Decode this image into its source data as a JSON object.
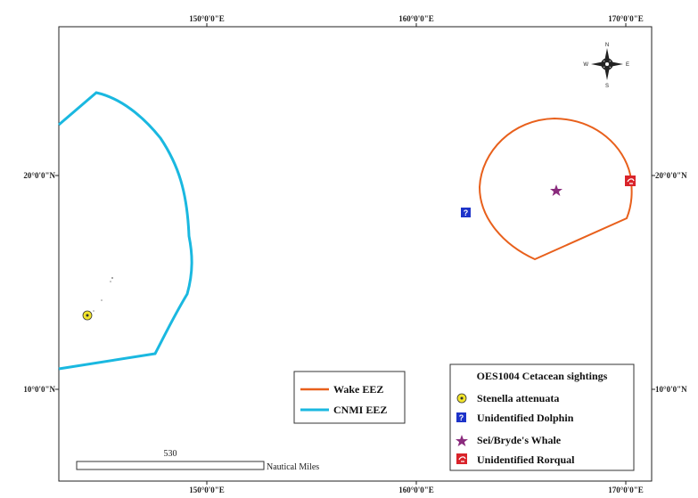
{
  "map": {
    "graticule": {
      "top_longitudes": [
        "150°0'0\"E",
        "160°0'0\"E",
        "170°0'0\"E"
      ],
      "bottom_longitudes": [
        "150°0'0\"E",
        "160°0'0\"E",
        "170°0'0\"E"
      ],
      "left_latitudes": [
        "20°0'0\"N",
        "10°0'0\"N"
      ],
      "right_latitudes": [
        "20°0'0\"N",
        "10°0'0\"N"
      ]
    },
    "compass": {
      "n": "N",
      "s": "S",
      "e": "E",
      "w": "W"
    },
    "colors": {
      "wake_eez": "#e8601c",
      "cnmi_eez": "#1ab8e0",
      "stenella": "#f2e52c",
      "dolphin": "#1d33c9",
      "whale": "#8a2b7d",
      "rorqual": "#d9232a"
    },
    "boundary_legend": {
      "items": [
        {
          "label": "Wake EEZ",
          "color": "#e8601c"
        },
        {
          "label": "CNMI EEZ",
          "color": "#1ab8e0"
        }
      ]
    },
    "sightings_legend": {
      "title": "OES1004 Cetacean sightings",
      "items": [
        {
          "label": "Stenella attenuata",
          "icon": "yellow-circle-icon"
        },
        {
          "label": "Unidentified Dolphin",
          "icon": "question-square-icon"
        },
        {
          "label": "Sei/Bryde's Whale",
          "icon": "star-icon"
        },
        {
          "label": "Unidentified Rorqual",
          "icon": "whale-square-icon"
        }
      ]
    },
    "scale_bar": {
      "value": "530",
      "unit": "Nautical Miles"
    }
  }
}
